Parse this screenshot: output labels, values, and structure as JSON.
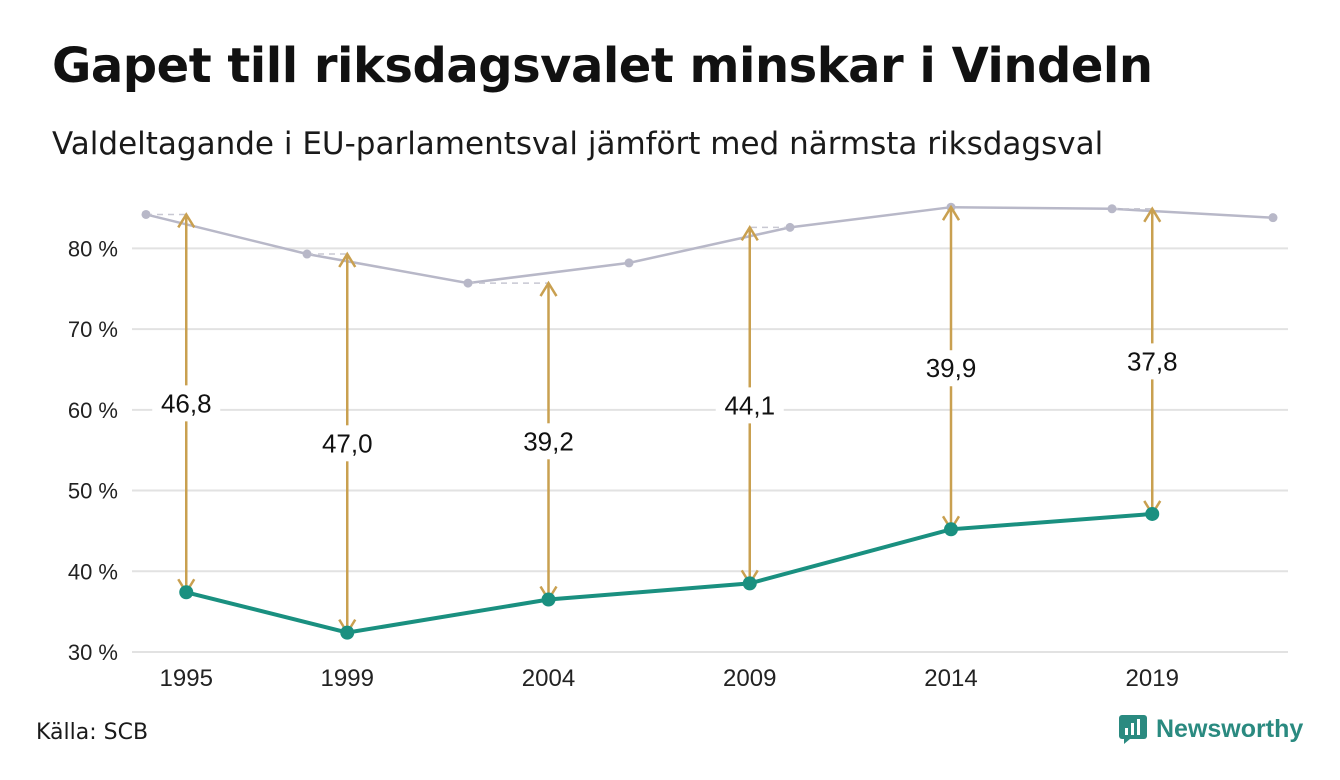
{
  "header": {
    "title": "Gapet till riksdagsvalet minskar i Vindeln",
    "subtitle": "Valdeltagande i EU-parlamentsval jämfört med närmsta riksdagsval"
  },
  "footer": {
    "source": "Källa: SCB",
    "brand": "Newsworthy"
  },
  "colors": {
    "eu_line": "#1a9080",
    "riksdag_line": "#b8b8c8",
    "gap_arrow": "#c9a050",
    "grid": "#e2e2e2",
    "brand": "#2a8a80"
  },
  "chart_data": {
    "type": "line",
    "ylim": [
      30,
      85
    ],
    "yticks": [
      30,
      40,
      50,
      60,
      70,
      80
    ],
    "ytick_labels": [
      "30 %",
      "40 %",
      "50 %",
      "60 %",
      "70 %",
      "80 %"
    ],
    "xlim": [
      1994,
      2022
    ],
    "xticks": [
      1995,
      1999,
      2004,
      2009,
      2014,
      2019
    ],
    "xtick_labels": [
      "1995",
      "1999",
      "2004",
      "2009",
      "2014",
      "2019"
    ],
    "grid": true,
    "series": [
      {
        "key": "riksdag",
        "x": [
          1994,
          1998,
          2002,
          2006,
          2010,
          2014,
          2018,
          2022
        ],
        "values": [
          84.2,
          79.3,
          75.7,
          78.2,
          82.6,
          85.1,
          84.9,
          83.8
        ]
      },
      {
        "key": "eu",
        "x": [
          1995,
          1999,
          2004,
          2009,
          2014,
          2019
        ],
        "values": [
          37.4,
          32.4,
          36.5,
          38.5,
          45.2,
          47.1
        ]
      }
    ],
    "gaps": [
      {
        "x": 1995,
        "from": 37.4,
        "to": 84.2,
        "label": "46,8"
      },
      {
        "x": 1999,
        "from": 32.4,
        "to": 79.3,
        "label": "47,0"
      },
      {
        "x": 2004,
        "from": 36.5,
        "to": 75.7,
        "label": "39,2"
      },
      {
        "x": 2009,
        "from": 38.5,
        "to": 82.6,
        "label": "44,1"
      },
      {
        "x": 2014,
        "from": 45.2,
        "to": 85.1,
        "label": "39,9"
      },
      {
        "x": 2019,
        "from": 47.1,
        "to": 84.9,
        "label": "37,8"
      }
    ]
  }
}
